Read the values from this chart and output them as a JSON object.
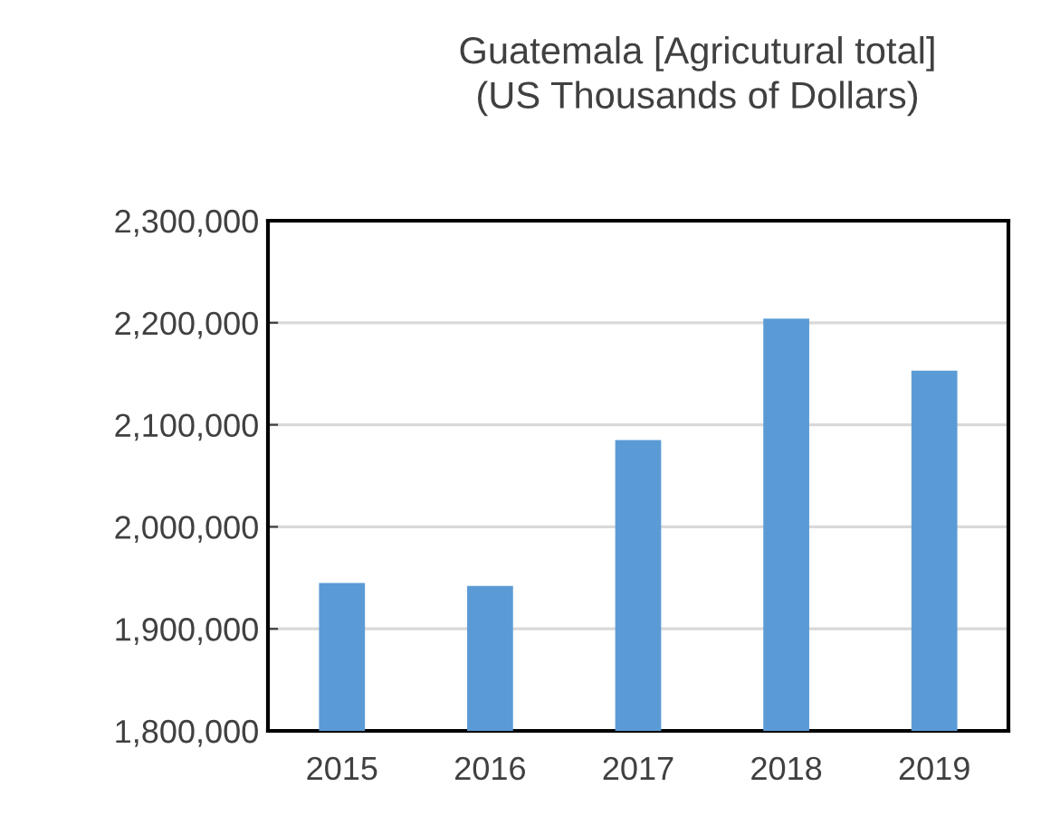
{
  "chart_data": {
    "type": "bar",
    "title": "Guatemala [Agricutural total]\n(US Thousands of Dollars)",
    "categories": [
      "2015",
      "2016",
      "2017",
      "2018",
      "2019"
    ],
    "values": [
      1945000,
      1942000,
      2085000,
      2204000,
      2153000
    ],
    "color": "#5b9bd5",
    "ylim": [
      1800000,
      2300000
    ],
    "yticks": [
      {
        "value": 1800000,
        "label": "1,800,000"
      },
      {
        "value": 1900000,
        "label": "1,900,000"
      },
      {
        "value": 2000000,
        "label": "2,000,000"
      },
      {
        "value": 2100000,
        "label": "2,100,000"
      },
      {
        "value": 2200000,
        "label": "2,200,000"
      },
      {
        "value": 2300000,
        "label": "2,300,000"
      }
    ],
    "grid": "y"
  }
}
